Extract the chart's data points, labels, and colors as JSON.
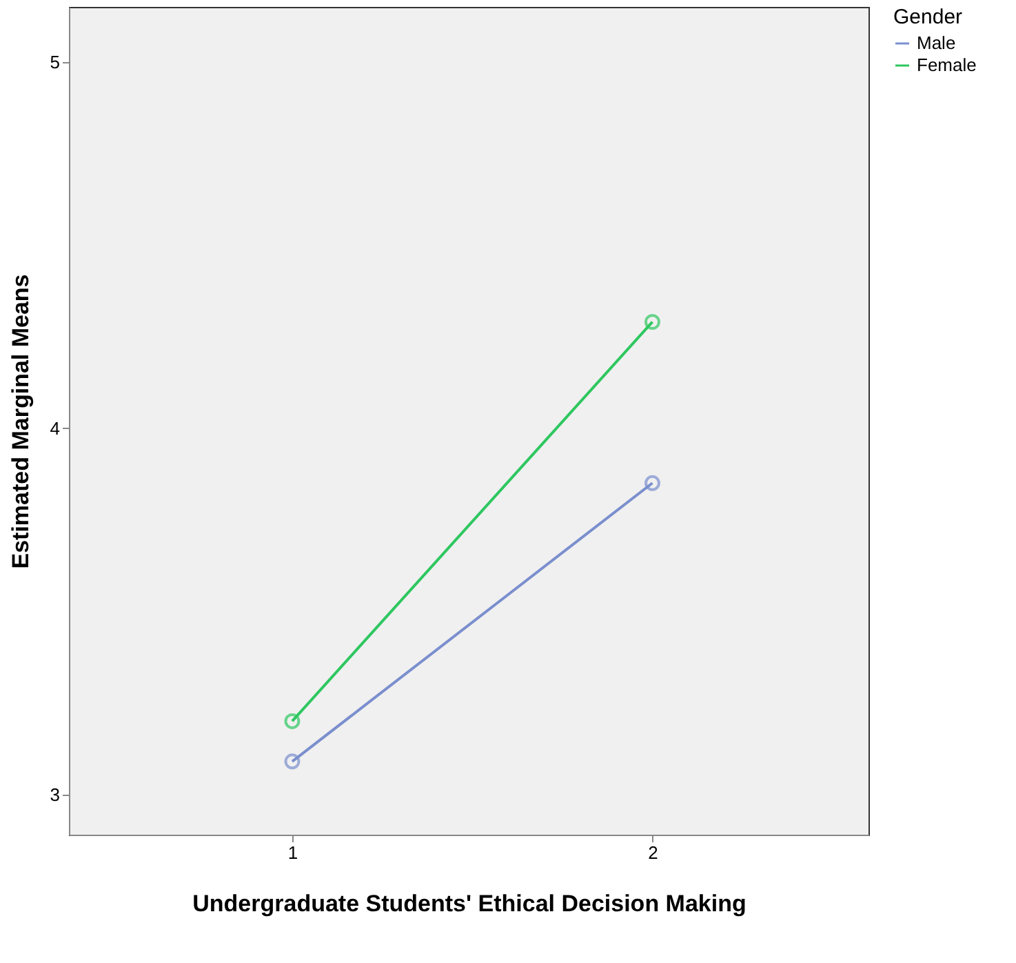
{
  "chart_data": {
    "type": "line",
    "xlabel": "Undergraduate Students' Ethical Decision Making",
    "ylabel": "Estimated Marginal Means",
    "legend_title": "Gender",
    "categories": [
      "1",
      "2"
    ],
    "series": [
      {
        "name": "Male",
        "color": "#7b8fce",
        "values": [
          3.09,
          3.85
        ]
      },
      {
        "name": "Female",
        "color": "#2ec760",
        "values": [
          3.2,
          4.29
        ]
      }
    ],
    "ylim": [
      2.89,
      5.15
    ],
    "yticks": [
      3,
      4,
      5
    ],
    "grid": false,
    "legend": "top right",
    "marker": "circle",
    "line_style": "solid"
  }
}
